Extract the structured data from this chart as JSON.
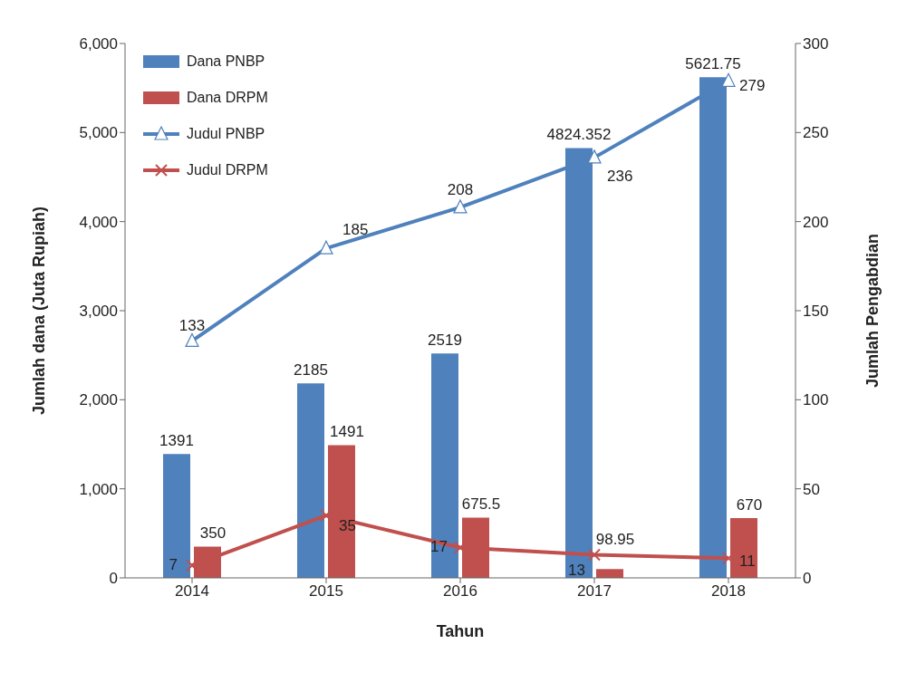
{
  "chart_data": {
    "type": "bar",
    "xlabel": "Tahun",
    "ylabel": "Jumlah dana (Juta Rupiah)",
    "y2label": "Jumlah Pengabdian",
    "categories": [
      "2014",
      "2015",
      "2016",
      "2017",
      "2018"
    ],
    "series": [
      {
        "name": "Dana PNBP",
        "color": "#4f81bd",
        "values": [
          1391,
          2185,
          2519,
          4824.352,
          5621.75
        ]
      },
      {
        "name": "Dana DRPM",
        "color": "#c0504d",
        "values": [
          350,
          1491,
          675.5,
          98.95,
          670
        ]
      },
      {
        "name": "Judul PNBP",
        "type": "line",
        "axis": "y2",
        "marker": "triangle",
        "color": "#4f81bd",
        "values": [
          133,
          185,
          208,
          236,
          279
        ]
      },
      {
        "name": "Judul DRPM",
        "type": "line",
        "axis": "y2",
        "marker": "cross",
        "color": "#c0504d",
        "values": [
          7,
          35,
          17,
          13,
          11
        ]
      }
    ],
    "ylim": [
      0,
      6000
    ],
    "yticks": [
      0,
      {
        "value": 1000,
        "label": "1,000"
      },
      {
        "value": 2000,
        "label": "2,000"
      },
      {
        "value": 3000,
        "label": "3,000"
      },
      {
        "value": 4000,
        "label": "4,000"
      },
      {
        "value": 5000,
        "label": "5,000"
      },
      {
        "value": 6000,
        "label": "6,000"
      }
    ],
    "y2lim": [
      0,
      300
    ],
    "y2ticks": [
      0,
      50,
      100,
      150,
      200,
      250,
      300
    ],
    "data_labels": true,
    "legend": "top left",
    "line_style": "solid"
  }
}
